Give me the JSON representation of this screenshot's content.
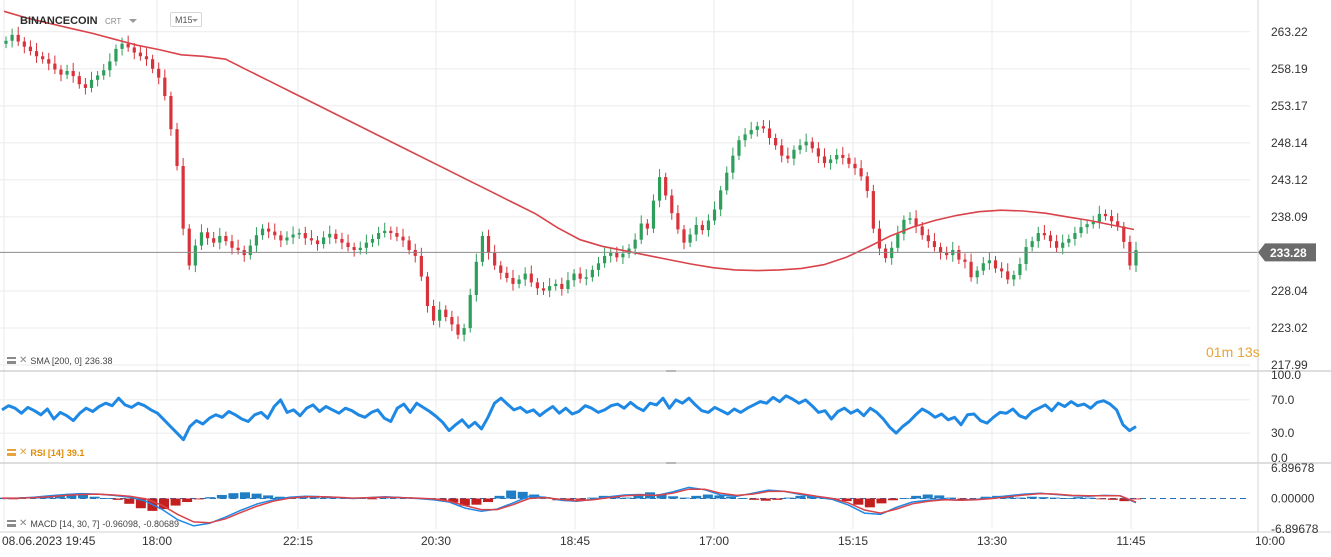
{
  "header": {
    "symbol": "BINANCECOIN",
    "mode": "CRT",
    "timeframe": "M15"
  },
  "timer": {
    "minutes": "01",
    "m_unit": "m",
    "seconds": "13",
    "s_unit": "s"
  },
  "indicators": {
    "sma": {
      "label": "SMA [200, 0]",
      "value": "236.38"
    },
    "rsi": {
      "label": "RSI [14]",
      "value": "39.1"
    },
    "macd": {
      "label": "MACD [14, 30, 7]",
      "value1": "-0.96098,",
      "value2": "-0.80689"
    }
  },
  "colors": {
    "up_candle": "#2e9e5b",
    "down_candle": "#d8323a",
    "sma_line": "#d9434a",
    "rsi_line": "#1e88e5",
    "macd_line": "#1e88e5",
    "signal_line": "#d9434a",
    "price_tag": "#6b6b6b"
  },
  "chart_data": [
    {
      "type": "candlestick",
      "title": "BINANCECOIN",
      "xlabel": "",
      "ylabel": "",
      "x_ticks": [
        "08.06.2023 19:45",
        "18:00",
        "22:15",
        "20:30",
        "18:45",
        "17:00",
        "15:15",
        "13:30",
        "11:45",
        "10:00"
      ],
      "y_ticks": [
        "263.22",
        "258.19",
        "253.17",
        "248.14",
        "243.12",
        "238.09",
        "233.28",
        "228.04",
        "223.02",
        "217.99"
      ],
      "ylim": [
        217.99,
        265.5
      ],
      "current_price": 233.28,
      "grid": true,
      "series": [
        {
          "name": "close",
          "values": [
            262,
            262.8,
            261.9,
            261.2,
            260.6,
            259.9,
            259.5,
            258.9,
            258.1,
            257.4,
            257.9,
            257.2,
            256.1,
            255.6,
            256.7,
            257.3,
            258.0,
            259.2,
            260.9,
            261.6,
            261.1,
            260.4,
            259.9,
            259.5,
            258.2,
            257.0,
            254.5,
            250.0,
            245.0,
            236.5,
            231.5,
            234.2,
            236.0,
            235.2,
            234.6,
            235.5,
            234.8,
            233.9,
            233.6,
            232.9,
            234.2,
            235.6,
            236.5,
            236.1,
            235.6,
            234.9,
            235.3,
            235.7,
            235.9,
            235.2,
            234.9,
            234.4,
            235.3,
            235.8,
            235.1,
            234.6,
            234.0,
            233.6,
            233.9,
            234.6,
            235.1,
            235.9,
            236.2,
            235.9,
            235.4,
            234.9,
            233.6,
            232.8,
            230.0,
            226.0,
            224.0,
            225.5,
            224.5,
            223.5,
            222.1,
            223.0,
            227.5,
            232.0,
            235.5,
            233.2,
            231.5,
            230.5,
            229.8,
            229.0,
            229.6,
            230.4,
            229.2,
            228.4,
            228.1,
            228.7,
            229.0,
            228.3,
            229.5,
            230.4,
            229.7,
            229.9,
            230.9,
            231.8,
            232.8,
            233.2,
            232.6,
            233.1,
            233.8,
            235.0,
            237.2,
            236.5,
            240.3,
            243.5,
            241.0,
            238.6,
            236.4,
            234.6,
            235.7,
            237.0,
            236.3,
            237.6,
            239.1,
            241.7,
            244.1,
            246.4,
            248.5,
            249.3,
            249.9,
            250.4,
            250.1,
            248.8,
            247.8,
            246.4,
            246.0,
            247.2,
            247.8,
            248.3,
            247.4,
            246.3,
            245.4,
            245.9,
            246.5,
            246.1,
            245.3,
            244.7,
            243.6,
            241.6,
            236.5,
            233.8,
            232.5,
            233.9,
            235.8,
            237.7,
            237.9,
            236.8,
            235.6,
            234.8,
            234.0,
            233.2,
            232.9,
            233.6,
            232.3,
            232.0,
            229.9,
            230.8,
            231.8,
            232.2,
            231.1,
            230.7,
            229.6,
            230.2,
            231.7,
            234.0,
            234.8,
            235.9,
            235.6,
            234.8,
            233.9,
            234.6,
            235.1,
            235.9,
            236.7,
            237.1,
            237.4,
            238.5,
            238.2,
            237.5,
            236.8,
            234.7,
            231.5,
            233.6
          ]
        },
        {
          "name": "SMA [200, 0]",
          "values": [
            266.0,
            265.1,
            264.4,
            263.7,
            263.0,
            262.2,
            261.4,
            260.8,
            260.1,
            259.9,
            259.5,
            258.0,
            256.5,
            255.0,
            253.5,
            252.0,
            250.5,
            249.0,
            247.5,
            246.0,
            244.5,
            243.0,
            241.5,
            240.0,
            238.5,
            236.6,
            235.0,
            234.1,
            233.5,
            232.9,
            232.3,
            231.7,
            231.2,
            230.9,
            230.8,
            230.9,
            231.1,
            231.6,
            232.6,
            234.0,
            235.5,
            236.7,
            237.6,
            238.3,
            238.8,
            239.0,
            238.9,
            238.6,
            238.1,
            237.6,
            237.0,
            236.38
          ]
        }
      ]
    },
    {
      "type": "line",
      "title": "RSI [14]",
      "xlabel": "",
      "ylabel": "",
      "y_ticks": [
        "100.0",
        "70.0",
        "30.0",
        "0.0"
      ],
      "ylim": [
        0,
        100
      ],
      "series": [
        {
          "name": "RSI [14]",
          "values": [
            58,
            63,
            60,
            54,
            61,
            57,
            52,
            59,
            47,
            55,
            51,
            45,
            54,
            60,
            56,
            62,
            66,
            63,
            72,
            64,
            61,
            66,
            63,
            58,
            54,
            46,
            38,
            30,
            22,
            38,
            45,
            41,
            48,
            52,
            49,
            56,
            52,
            47,
            44,
            52,
            55,
            48,
            62,
            70,
            55,
            58,
            51,
            60,
            64,
            56,
            62,
            58,
            54,
            60,
            57,
            52,
            49,
            55,
            58,
            48,
            44,
            60,
            65,
            55,
            66,
            61,
            56,
            50,
            43,
            33,
            40,
            46,
            37,
            43,
            35,
            49,
            66,
            72,
            65,
            58,
            61,
            55,
            58,
            51,
            57,
            62,
            54,
            60,
            53,
            56,
            63,
            60,
            55,
            58,
            63,
            65,
            60,
            67,
            61,
            57,
            66,
            64,
            72,
            60,
            70,
            66,
            72,
            64,
            57,
            55,
            61,
            57,
            53,
            59,
            55,
            60,
            64,
            68,
            66,
            73,
            68,
            75,
            71,
            66,
            70,
            63,
            55,
            57,
            47,
            56,
            60,
            54,
            58,
            51,
            60,
            55,
            47,
            37,
            30,
            38,
            44,
            52,
            59,
            55,
            49,
            53,
            46,
            49,
            40,
            52,
            53,
            45,
            42,
            49,
            55,
            54,
            59,
            51,
            48,
            56,
            60,
            64,
            57,
            66,
            62,
            68,
            63,
            65,
            60,
            67,
            69,
            65,
            58,
            40,
            33,
            38
          ]
        }
      ]
    },
    {
      "type": "bar",
      "title": "MACD [14, 30, 7]",
      "xlabel": "",
      "ylabel": "",
      "y_ticks": [
        "6.89678",
        "0.00000",
        "-6.89678"
      ],
      "ylim": [
        -6.89678,
        6.89678
      ],
      "series": [
        {
          "name": "histogram",
          "values": [
            0.2,
            -0.1,
            0.3,
            0.4,
            0.6,
            0.9,
            1.1,
            0.8,
            0.4,
            0.1,
            -0.3,
            -1.2,
            -2.2,
            -2.8,
            -2.4,
            -1.6,
            -0.8,
            -0.2,
            0.3,
            0.8,
            1.2,
            1.4,
            1.1,
            0.7,
            0.4,
            0.2,
            0.3,
            0.6,
            0.5,
            0.3,
            0.2,
            0.1,
            -0.1,
            0.2,
            0.4,
            0.3,
            0.1,
            -0.2,
            -0.5,
            -0.9,
            -1.6,
            -1.4,
            -0.8,
            0.6,
            1.8,
            1.5,
            0.9,
            0.3,
            -0.4,
            -0.6,
            -0.3,
            0.2,
            0.6,
            0.4,
            0.2,
            0.8,
            1.4,
            1.0,
            0.5,
            0.2,
            0.6,
            0.9,
            0.7,
            0.4,
            0.1,
            -0.3,
            -0.5,
            -0.3,
            0.2,
            0.6,
            0.5,
            0.3,
            -0.2,
            -0.6,
            -1.4,
            -2.0,
            -1.1,
            -0.4,
            0.1,
            0.6,
            0.9,
            0.7,
            0.2,
            -0.3,
            -0.1,
            0.4,
            0.6,
            0.4,
            0.2,
            0.4,
            0.3,
            0.2,
            0.1,
            0.3,
            0.2,
            -0.1,
            -0.3,
            -0.6,
            -0.2
          ]
        },
        {
          "name": "MACD",
          "values": [
            0.0,
            0.1,
            0.3,
            0.6,
            0.9,
            1.1,
            1.0,
            0.7,
            0.3,
            -0.6,
            -2.4,
            -4.8,
            -6.2,
            -5.6,
            -4.2,
            -2.6,
            -1.2,
            -0.3,
            0.3,
            0.5,
            0.4,
            0.2,
            0.0,
            0.2,
            0.4,
            0.2,
            0.0,
            -0.3,
            -0.8,
            -2.2,
            -2.9,
            -2.4,
            -1.0,
            0.5,
            0.3,
            -0.4,
            -0.6,
            -0.2,
            0.4,
            0.8,
            0.9,
            0.7,
            1.5,
            2.5,
            2.0,
            0.8,
            0.5,
            1.2,
            1.9,
            1.6,
            0.9,
            0.3,
            -0.2,
            -1.5,
            -3.3,
            -3.6,
            -2.0,
            -0.8,
            -0.4,
            -0.2,
            -0.4,
            -0.2,
            0.2,
            0.6,
            1.0,
            1.2,
            0.9,
            0.6,
            0.5,
            0.7,
            0.6,
            -0.96098
          ]
        },
        {
          "name": "signal",
          "values": [
            0.1,
            0.1,
            0.2,
            0.4,
            0.7,
            0.9,
            1.0,
            0.8,
            0.5,
            -0.1,
            -1.5,
            -3.6,
            -5.3,
            -5.5,
            -4.6,
            -3.1,
            -1.7,
            -0.6,
            0.1,
            0.4,
            0.4,
            0.3,
            0.1,
            0.2,
            0.3,
            0.2,
            0.1,
            -0.1,
            -0.6,
            -1.6,
            -2.5,
            -2.5,
            -1.4,
            0.0,
            0.2,
            -0.2,
            -0.5,
            -0.3,
            0.2,
            0.6,
            0.8,
            0.7,
            1.2,
            2.1,
            2.1,
            1.2,
            0.7,
            1.0,
            1.6,
            1.6,
            1.1,
            0.5,
            0.0,
            -1.0,
            -2.6,
            -3.3,
            -2.4,
            -1.2,
            -0.6,
            -0.3,
            -0.4,
            -0.3,
            0.0,
            0.4,
            0.8,
            1.1,
            1.0,
            0.7,
            0.6,
            0.6,
            0.6,
            -0.80689
          ]
        }
      ]
    }
  ]
}
